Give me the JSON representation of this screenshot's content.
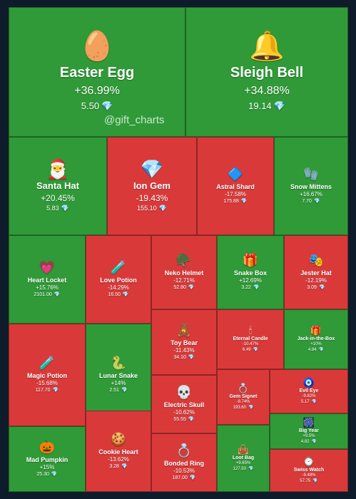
{
  "watermark": "@gift_charts",
  "diamond_symbol": "💎",
  "tiles": [
    {
      "name": "Easter Egg",
      "change": "+36.99%",
      "price": "5.50",
      "icon": "🥚",
      "icon_name": "easter-egg-icon",
      "trend": "up"
    },
    {
      "name": "Sleigh Bell",
      "change": "+34.88%",
      "price": "19.14",
      "icon": "🔔",
      "icon_name": "sleigh-bell-icon",
      "trend": "up"
    },
    {
      "name": "Santa Hat",
      "change": "+20.45%",
      "price": "5.83",
      "icon": "🎅",
      "icon_name": "santa-hat-icon",
      "trend": "up"
    },
    {
      "name": "Ion Gem",
      "change": "-19.43%",
      "price": "155.10",
      "icon": "💎",
      "icon_name": "ion-gem-icon",
      "trend": "down"
    },
    {
      "name": "Astral Shard",
      "change": "-17.58%",
      "price": "175.88",
      "icon": "🔷",
      "icon_name": "astral-shard-icon",
      "trend": "down"
    },
    {
      "name": "Snow Mittens",
      "change": "+16.67%",
      "price": "7.70",
      "icon": "🧤",
      "icon_name": "snow-mittens-icon",
      "trend": "up"
    },
    {
      "name": "Heart Locket",
      "change": "+15.76%",
      "price": "2101.00",
      "icon": "💗",
      "icon_name": "heart-locket-icon",
      "trend": "up"
    },
    {
      "name": "Love Potion",
      "change": "-14.29%",
      "price": "16.50",
      "icon": "🧪",
      "icon_name": "love-potion-icon",
      "trend": "down"
    },
    {
      "name": "Neko Helmet",
      "change": "-12.71%",
      "price": "52.80",
      "icon": "🪖",
      "icon_name": "neko-helmet-icon",
      "trend": "down"
    },
    {
      "name": "Snake Box",
      "change": "+12.69%",
      "price": "3.22",
      "icon": "🎁",
      "icon_name": "snake-box-icon",
      "trend": "up"
    },
    {
      "name": "Jester Hat",
      "change": "-12.19%",
      "price": "3.09",
      "icon": "🎭",
      "icon_name": "jester-hat-icon",
      "trend": "down"
    },
    {
      "name": "Toy Bear",
      "change": "-11.43%",
      "price": "34.10",
      "icon": "🧸",
      "icon_name": "toy-bear-icon",
      "trend": "down"
    },
    {
      "name": "Eternal Candle",
      "change": "-10.47%",
      "price": "6.49",
      "icon": "🕯",
      "icon_name": "eternal-candle-icon",
      "trend": "down"
    },
    {
      "name": "Jack-in-the-Box",
      "change": "+10%",
      "price": "4.84",
      "icon": "🎁",
      "icon_name": "jack-in-the-box-icon",
      "trend": "up"
    },
    {
      "name": "Magic Potion",
      "change": "-15.68%",
      "price": "117.70",
      "icon": "🧪",
      "icon_name": "magic-potion-icon",
      "trend": "down"
    },
    {
      "name": "Lunar Snake",
      "change": "+14%",
      "price": "2.51",
      "icon": "🐍",
      "icon_name": "lunar-snake-icon",
      "trend": "up"
    },
    {
      "name": "Electric Skull",
      "change": "-10.62%",
      "price": "55.55",
      "icon": "💀",
      "icon_name": "electric-skull-icon",
      "trend": "down"
    },
    {
      "name": "Gem Signet",
      "change": "-9.74%",
      "price": "193.60",
      "icon": "💍",
      "icon_name": "gem-signet-icon",
      "trend": "down"
    },
    {
      "name": "Evil Eye",
      "change": "-9.82%",
      "price": "5.17",
      "icon": "🧿",
      "icon_name": "evil-eye-icon",
      "trend": "down"
    },
    {
      "name": "Big Year",
      "change": "+9.5%",
      "price": "4.82",
      "icon": "🎆",
      "icon_name": "big-year-icon",
      "trend": "up"
    },
    {
      "name": "Mad Pumpkin",
      "change": "+15%",
      "price": "25.30",
      "icon": "🎃",
      "icon_name": "mad-pumpkin-icon",
      "trend": "up"
    },
    {
      "name": "Cookie Heart",
      "change": "-13.62%",
      "price": "3.28",
      "icon": "🍪",
      "icon_name": "cookie-heart-icon",
      "trend": "down"
    },
    {
      "name": "Bonded Ring",
      "change": "-10.53%",
      "price": "187.00",
      "icon": "💍",
      "icon_name": "bonded-ring-icon",
      "trend": "down"
    },
    {
      "name": "Loot Bag",
      "change": "+9.65%",
      "price": "127.50",
      "icon": "👜",
      "icon_name": "loot-bag-icon",
      "trend": "up"
    },
    {
      "name": "Swiss Watch",
      "change": "-9.48%",
      "price": "57.75",
      "icon": "⌚",
      "icon_name": "swiss-watch-icon",
      "trend": "down"
    }
  ]
}
